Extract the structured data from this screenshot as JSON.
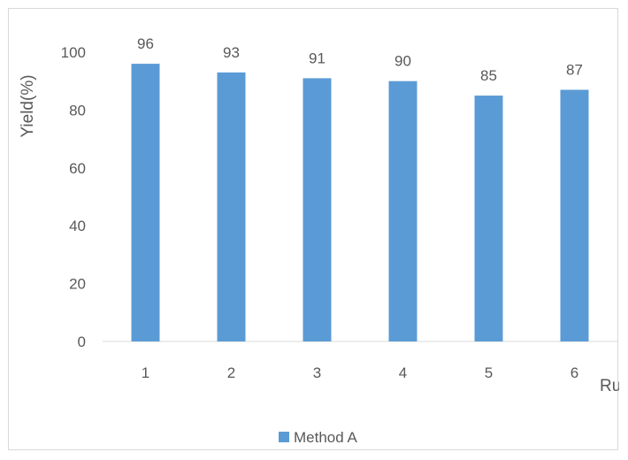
{
  "chart_data": {
    "type": "bar",
    "title": "",
    "xlabel": "Run",
    "ylabel": "Yield(%)",
    "categories": [
      "1",
      "2",
      "3",
      "4",
      "5",
      "6"
    ],
    "series": [
      {
        "name": "Method A",
        "values": [
          96,
          93,
          91,
          90,
          85,
          87
        ]
      }
    ],
    "data_labels": [
      "96",
      "93",
      "91",
      "90",
      "85",
      "87"
    ],
    "y_ticks": [
      "0",
      "20",
      "40",
      "60",
      "80",
      "100"
    ],
    "ylim": [
      0,
      100
    ],
    "grid": false,
    "legend_position": "bottom",
    "colors": {
      "bar": "#5b9bd5",
      "axis": "#d9d9d9",
      "text": "#595959"
    }
  }
}
